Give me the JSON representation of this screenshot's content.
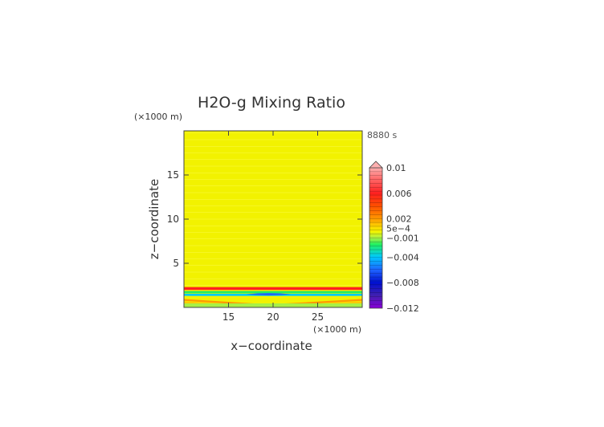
{
  "chart_data": {
    "type": "heatmap",
    "title": "H2O-g Mixing Ratio",
    "time_label": "8880 s",
    "xlabel": "x−coordinate",
    "ylabel": "z−coordinate",
    "x_unit": "(×1000 m)",
    "y_unit": "(×1000 m)",
    "xlim": [
      10,
      30
    ],
    "ylim": [
      0,
      20
    ],
    "x_ticks": [
      15,
      20,
      25
    ],
    "y_ticks": [
      5,
      10,
      15
    ],
    "field_description": {
      "background_value": 0.0,
      "background_color": "#f2f200",
      "layers": [
        {
          "z_from": 0.0,
          "z_to": 0.4,
          "value": -0.0005,
          "color": "#a8f046"
        },
        {
          "z_from": 0.4,
          "z_to": 1.5,
          "value": 0.002,
          "color": "#ff9900",
          "note": "dome centered near x=19.5"
        },
        {
          "z_from": 1.2,
          "z_to": 1.9,
          "value": -0.004,
          "color": "#00c8ff"
        },
        {
          "z_from": 1.9,
          "z_to": 2.3,
          "value": 0.006,
          "color": "#ff2020"
        }
      ]
    },
    "colorbar": {
      "labels": [
        "0.01",
        "0.006",
        "0.002",
        "5e−4",
        "−0.001",
        "−0.004",
        "−0.008",
        "−0.012"
      ],
      "label_values": [
        0.01,
        0.006,
        0.002,
        0.0005,
        -0.001,
        -0.004,
        -0.008,
        -0.012
      ],
      "range": [
        -0.012,
        0.01
      ],
      "extend": "max",
      "stops": [
        {
          "value": 0.01,
          "color": "#ffb0b0"
        },
        {
          "value": 0.008,
          "color": "#ff6060"
        },
        {
          "value": 0.006,
          "color": "#ff2020"
        },
        {
          "value": 0.004,
          "color": "#ff5000"
        },
        {
          "value": 0.002,
          "color": "#ff9900"
        },
        {
          "value": 0.001,
          "color": "#ffcc00"
        },
        {
          "value": 0.0,
          "color": "#f2f200"
        },
        {
          "value": -0.001,
          "color": "#a8f046"
        },
        {
          "value": -0.002,
          "color": "#20f060"
        },
        {
          "value": -0.004,
          "color": "#00c8ff"
        },
        {
          "value": -0.006,
          "color": "#1e64ff"
        },
        {
          "value": -0.008,
          "color": "#0010d0"
        },
        {
          "value": -0.01,
          "color": "#4020b0"
        },
        {
          "value": -0.012,
          "color": "#8a00d8"
        }
      ]
    }
  }
}
